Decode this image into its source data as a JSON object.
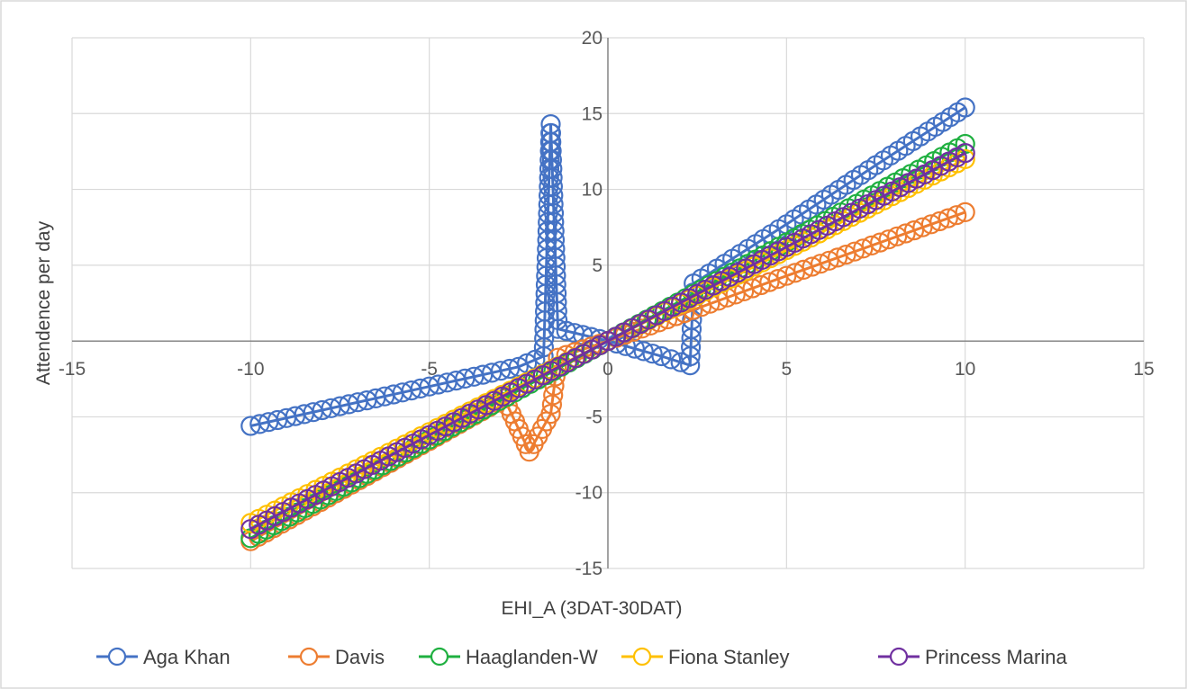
{
  "chart_data": {
    "type": "scatter",
    "title": "",
    "xlabel": "EHI_A (3DAT-30DAT)",
    "ylabel": "Attendence per day",
    "xlim": [
      -15,
      15
    ],
    "ylim": [
      -15,
      20
    ],
    "x_ticks": [
      -15,
      -10,
      -5,
      0,
      5,
      10,
      15
    ],
    "y_ticks": [
      -15,
      -10,
      -5,
      0,
      5,
      10,
      15,
      20
    ],
    "grid": "major gridlines on both axes",
    "legend_position": "bottom",
    "marker": "open-circle",
    "line": "straight lines with markers",
    "series": [
      {
        "name": "Aga Khan",
        "color": "#4472C4",
        "points": [
          [
            -10,
            -5.6
          ],
          [
            -7.5,
            -4.3
          ],
          [
            -5,
            -3.0
          ],
          [
            -2.5,
            -1.7
          ],
          [
            -1.8,
            -1.0
          ],
          [
            -1.6,
            14.3
          ],
          [
            -1.4,
            0.8
          ],
          [
            0,
            0
          ],
          [
            1.5,
            -1.0
          ],
          [
            2.3,
            -1.6
          ],
          [
            2.4,
            3.8
          ],
          [
            5,
            7.7
          ],
          [
            7.5,
            11.6
          ],
          [
            10,
            15.4
          ]
        ]
      },
      {
        "name": "Davis",
        "color": "#ED7D31",
        "points": [
          [
            -10,
            -13.2
          ],
          [
            -5,
            -6.6
          ],
          [
            -2.9,
            -3.8
          ],
          [
            -2.2,
            -7.3
          ],
          [
            -1.6,
            -4.8
          ],
          [
            -1.4,
            -1.1
          ],
          [
            0,
            0
          ],
          [
            5,
            4.3
          ],
          [
            10,
            8.5
          ]
        ]
      },
      {
        "name": "Haaglanden-W",
        "color": "#1FB040",
        "points": [
          [
            -10,
            -13.0
          ],
          [
            -5,
            -6.5
          ],
          [
            0,
            0
          ],
          [
            5,
            6.5
          ],
          [
            10,
            13.0
          ]
        ]
      },
      {
        "name": "Fiona Stanley",
        "color": "#FFC000",
        "points": [
          [
            -10,
            -12.0
          ],
          [
            -5,
            -6.0
          ],
          [
            0,
            0
          ],
          [
            5,
            6.0
          ],
          [
            10,
            12.0
          ]
        ]
      },
      {
        "name": "Princess Marina",
        "color": "#7030A0",
        "points": [
          [
            -10,
            -12.4
          ],
          [
            -5,
            -6.2
          ],
          [
            0,
            0
          ],
          [
            5,
            6.2
          ],
          [
            10,
            12.4
          ]
        ]
      }
    ]
  }
}
